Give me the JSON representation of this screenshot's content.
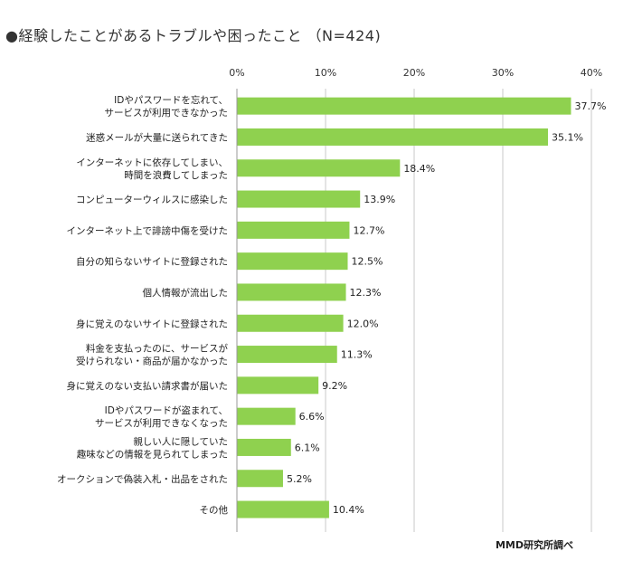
{
  "chart_data": {
    "type": "bar",
    "orientation": "horizontal",
    "title": "●経験したことがあるトラブルや困ったこと （N=424)",
    "x_ticks": [
      "0%",
      "10%",
      "20%",
      "30%",
      "40%"
    ],
    "xlim": [
      0,
      40
    ],
    "grid": true,
    "bar_color": "#8fd14f",
    "categories": [
      [
        "IDやパスワードを忘れて、",
        "サービスが利用できなかった"
      ],
      [
        "迷惑メールが大量に送られてきた"
      ],
      [
        "インターネットに依存してしまい、",
        "時間を浪費してしまった"
      ],
      [
        "コンピューターウィルスに感染した"
      ],
      [
        "インターネット上で誹謗中傷を受けた"
      ],
      [
        "自分の知らないサイトに登録された"
      ],
      [
        "個人情報が流出した"
      ],
      [
        "身に覚えのないサイトに登録された"
      ],
      [
        "料金を支払ったのに、サービスが",
        "受けられない・商品が届かなかった"
      ],
      [
        "身に覚えのない支払い請求書が届いた"
      ],
      [
        "IDやパスワードが盗まれて、",
        "サービスが利用できなくなった"
      ],
      [
        "親しい人に隠していた",
        "趣味などの情報を見られてしまった"
      ],
      [
        "オークションで偽装入札・出品をされた"
      ],
      [
        "その他"
      ]
    ],
    "values": [
      37.7,
      35.1,
      18.4,
      13.9,
      12.7,
      12.5,
      12.3,
      12.0,
      11.3,
      9.2,
      6.6,
      6.1,
      5.2,
      10.4
    ],
    "value_labels": [
      "37.7%",
      "35.1%",
      "18.4%",
      "13.9%",
      "12.7%",
      "12.5%",
      "12.3%",
      "12.0%",
      "11.3%",
      "9.2%",
      "6.6%",
      "6.1%",
      "5.2%",
      "10.4%"
    ]
  },
  "source": "MMD研究所調べ"
}
